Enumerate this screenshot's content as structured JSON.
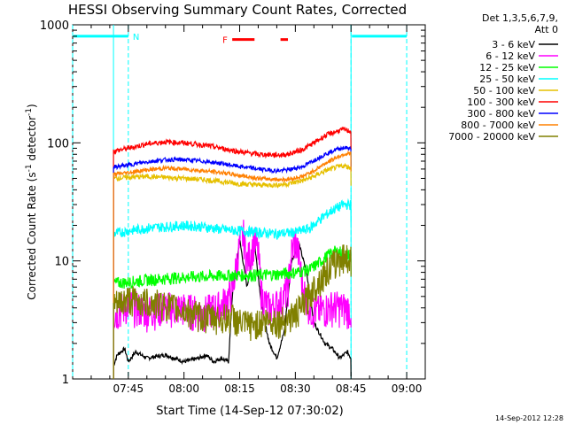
{
  "chart_data": {
    "type": "line",
    "title": "HESSI Observing Summary Count Rates, Corrected",
    "xlabel": "Start Time (14-Sep-12 07:30:02)",
    "ylabel_main": "Corrected Count Rate (s",
    "ylabel_sup1": "-1",
    "ylabel_mid": " detector",
    "ylabel_sup2": "-1",
    "ylabel_end": ")",
    "yscale": "log",
    "ylim": [
      1,
      1000
    ],
    "xlim_minutes": [
      0,
      95
    ],
    "x_ticks": [
      {
        "label": "07:45",
        "minute": 15
      },
      {
        "label": "08:00",
        "minute": 30
      },
      {
        "label": "08:15",
        "minute": 45
      },
      {
        "label": "08:30",
        "minute": 60
      },
      {
        "label": "08:45",
        "minute": 75
      },
      {
        "label": "09:00",
        "minute": 90
      }
    ],
    "y_ticks": [
      {
        "label": "1",
        "value": 1
      },
      {
        "label": "10",
        "value": 10
      },
      {
        "label": "100",
        "value": 100
      },
      {
        "label": "1000",
        "value": 1000
      }
    ],
    "legend_header": [
      "Det 1,3,5,6,7,9,",
      "Att 0"
    ],
    "series": [
      {
        "name": "3 - 6 keV",
        "color": "#000000",
        "t": [
          11,
          12,
          14,
          15,
          17,
          20,
          25,
          30,
          34,
          36,
          38,
          40,
          42,
          43,
          45,
          47,
          49,
          51,
          53,
          55,
          57,
          59,
          61,
          63,
          65,
          68,
          70,
          72,
          74,
          75
        ],
        "v": [
          1.3,
          1.6,
          1.8,
          1.4,
          1.7,
          1.5,
          1.6,
          1.4,
          1.5,
          1.6,
          1.4,
          1.5,
          1.4,
          5,
          15,
          6,
          14,
          4,
          2,
          1.5,
          2.5,
          10,
          14,
          8,
          3,
          2,
          1.8,
          1.5,
          1.7,
          1.5
        ]
      },
      {
        "name": "6 - 12 keV",
        "color": "#ff00ff",
        "t": [
          11,
          15,
          20,
          25,
          30,
          35,
          40,
          43,
          45,
          46,
          47,
          49,
          50,
          51,
          53,
          56,
          58,
          59,
          60,
          61,
          62,
          64,
          66,
          70,
          74,
          75
        ],
        "v": [
          3.6,
          4.3,
          3.8,
          4.1,
          4.0,
          3.7,
          4.2,
          5.5,
          14,
          17,
          10,
          15,
          12,
          5,
          4,
          4.5,
          6,
          12,
          15,
          11,
          6,
          4,
          3.8,
          4.2,
          4.0,
          3.9
        ]
      },
      {
        "name": "12 - 25 keV",
        "color": "#00ff00",
        "t": [
          11,
          15,
          20,
          25,
          30,
          35,
          40,
          45,
          50,
          55,
          60,
          64,
          67,
          70,
          72,
          75
        ],
        "v": [
          6.5,
          6.6,
          6.9,
          7.1,
          7.3,
          7.4,
          7.5,
          7.6,
          7.6,
          7.7,
          8.0,
          8.5,
          10,
          12,
          12,
          11
        ]
      },
      {
        "name": "25 - 50 keV",
        "color": "#00ffff",
        "t": [
          11,
          15,
          20,
          25,
          30,
          35,
          40,
          45,
          50,
          55,
          60,
          64,
          67,
          70,
          73,
          75
        ],
        "v": [
          17,
          18,
          19,
          19.5,
          20,
          19.5,
          18.5,
          18,
          17.5,
          17,
          17.5,
          19,
          23,
          27,
          30,
          30
        ]
      },
      {
        "name": "50 - 100 keV",
        "color": "#e6c000",
        "t": [
          11,
          15,
          20,
          25,
          30,
          35,
          40,
          45,
          50,
          55,
          58,
          62,
          65,
          68,
          71,
          73,
          75
        ],
        "v": [
          50,
          51,
          52,
          51,
          50,
          49,
          47,
          45,
          44,
          44,
          45,
          48,
          52,
          58,
          62,
          64,
          62
        ]
      },
      {
        "name": "100 - 300 keV",
        "color": "#ff0000",
        "t": [
          11,
          15,
          20,
          25,
          30,
          35,
          40,
          45,
          50,
          55,
          58,
          62,
          65,
          68,
          71,
          73,
          75
        ],
        "v": [
          85,
          90,
          98,
          102,
          100,
          96,
          90,
          84,
          80,
          79,
          80,
          88,
          100,
          115,
          125,
          130,
          125
        ]
      },
      {
        "name": "300 - 800 keV",
        "color": "#0000ff",
        "t": [
          11,
          15,
          20,
          25,
          30,
          35,
          40,
          45,
          50,
          55,
          58,
          62,
          65,
          68,
          71,
          73,
          75
        ],
        "v": [
          62,
          65,
          69,
          72,
          72,
          70,
          67,
          63,
          60,
          58,
          59,
          63,
          71,
          80,
          88,
          91,
          90
        ]
      },
      {
        "name": "800 - 7000 keV",
        "color": "#ff8000",
        "t": [
          11,
          15,
          20,
          25,
          30,
          35,
          40,
          45,
          50,
          55,
          58,
          62,
          65,
          68,
          71,
          73,
          75
        ],
        "v": [
          54,
          56,
          59,
          61,
          60,
          58,
          56,
          53,
          50,
          49,
          49,
          52,
          58,
          67,
          75,
          80,
          82
        ]
      },
      {
        "name": "7000 - 20000 keV",
        "color": "#808000",
        "t": [
          11,
          15,
          20,
          25,
          30,
          35,
          40,
          43,
          45,
          48,
          50,
          53,
          56,
          58,
          60,
          62,
          65,
          68,
          71,
          73,
          75
        ],
        "v": [
          4.2,
          4.8,
          4.5,
          4.3,
          3.8,
          3.4,
          3.3,
          3.4,
          3.0,
          2.9,
          3.0,
          3.2,
          3.1,
          3.3,
          3.6,
          4.2,
          6,
          8,
          10,
          11,
          10.5
        ]
      }
    ],
    "annotations": {
      "N_label": "N",
      "F_label": "F",
      "night_intervals_min": [
        [
          0,
          15
        ],
        [
          75,
          90
        ]
      ],
      "flare_segments_min": [
        [
          43,
          49
        ],
        [
          56,
          58
        ]
      ],
      "data_span_min": [
        11,
        75
      ],
      "night_marker_value": 800,
      "flare_marker_value": 750
    },
    "grid": false,
    "legend_placement": "right"
  },
  "footer_date": "14-Sep-2012 12:28"
}
